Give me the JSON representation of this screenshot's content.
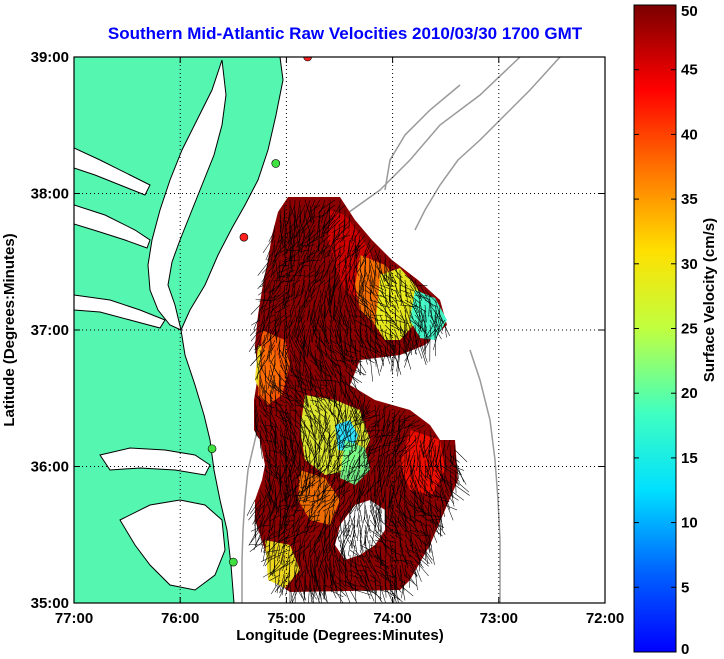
{
  "title": "Southern Mid-Atlantic Raw Velocities 2010/03/30 1700 GMT",
  "xlabel": "Longitude (Degrees:Minutes)",
  "ylabel": "Latitude (Degrees:Minutes)",
  "colorbar": {
    "label": "Surface Velocity (cm/s)",
    "ticks": [
      "0",
      "5",
      "10",
      "15",
      "20",
      "25",
      "30",
      "35",
      "40",
      "45",
      "50"
    ],
    "range": [
      0,
      50
    ],
    "colormap": "jet"
  },
  "map": {
    "lon_range": [
      -77,
      -72
    ],
    "lat_range": [
      35,
      39
    ],
    "x_ticks": [
      {
        "lon": -77,
        "label": "77:00"
      },
      {
        "lon": -76,
        "label": "76:00"
      },
      {
        "lon": -75,
        "label": "75:00"
      },
      {
        "lon": -74,
        "label": "74:00"
      },
      {
        "lon": -73,
        "label": "73:00"
      },
      {
        "lon": -72,
        "label": "72:00"
      }
    ],
    "y_ticks": [
      {
        "lat": 39,
        "label": "39:00"
      },
      {
        "lat": 38,
        "label": "38:00"
      },
      {
        "lat": 37,
        "label": "37:00"
      },
      {
        "lat": 36,
        "label": "36:00"
      },
      {
        "lat": 35,
        "label": "35:00"
      }
    ],
    "grid": "dotted",
    "land_color": "#55f7b0",
    "field_color": "#8b0000",
    "stations": [
      {
        "lon": -74.8,
        "lat": 39.0,
        "color": "#ff2020"
      },
      {
        "lon": -75.1,
        "lat": 38.22,
        "color": "#40e040"
      },
      {
        "lon": -75.4,
        "lat": 37.68,
        "color": "#ff2020"
      },
      {
        "lon": -75.7,
        "lat": 36.13,
        "color": "#40e040"
      },
      {
        "lon": -75.5,
        "lat": 35.3,
        "color": "#40e040"
      }
    ]
  }
}
